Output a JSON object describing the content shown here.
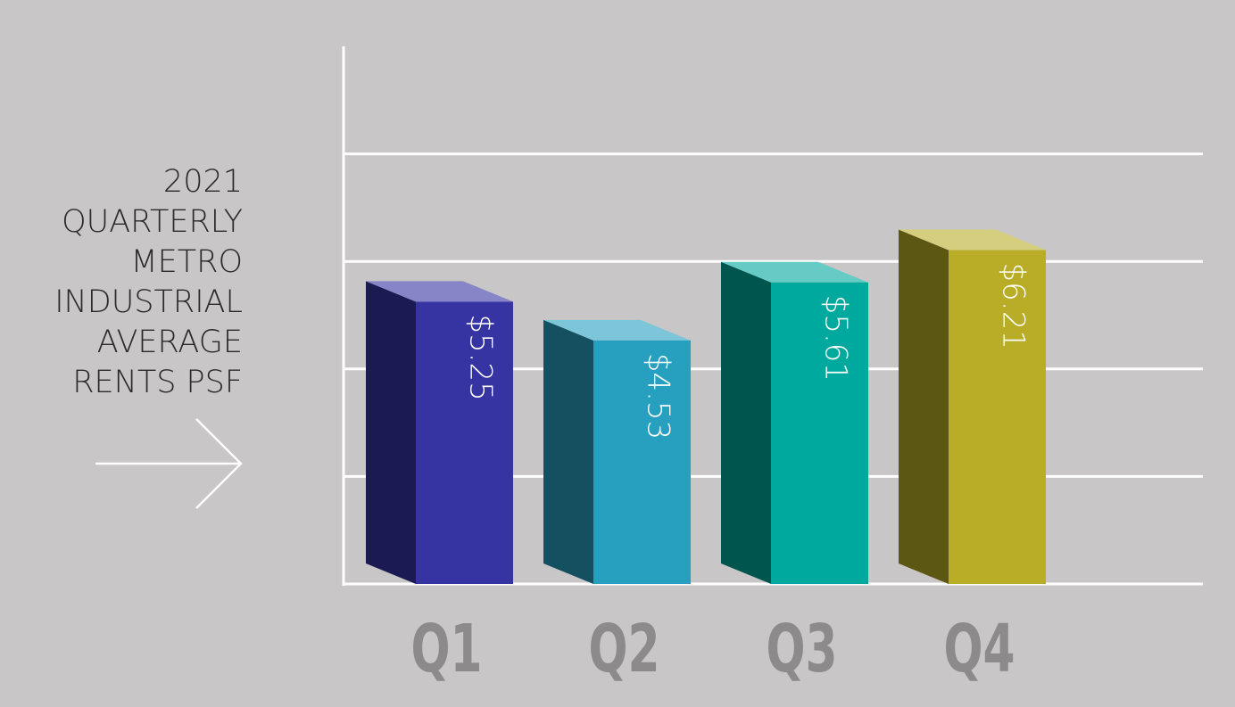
{
  "chart_data": {
    "type": "bar3d",
    "title_lines": [
      "2021",
      "QUARTERLY",
      "METRO",
      "INDUSTRIAL",
      "AVERAGE",
      "RENTS PSF"
    ],
    "categories": [
      "Q1",
      "Q2",
      "Q3",
      "Q4"
    ],
    "values": [
      5.25,
      4.53,
      5.61,
      6.21
    ],
    "value_labels": [
      "$5.25",
      "$4.53",
      "$5.61",
      "$6.21"
    ],
    "colors": [
      "#3633a3",
      "#27a0c0",
      "#00a99d",
      "#b9ad28"
    ],
    "ylim": [
      0,
      10
    ],
    "yticks": [
      0,
      2,
      4,
      6,
      8
    ],
    "grid": true
  }
}
